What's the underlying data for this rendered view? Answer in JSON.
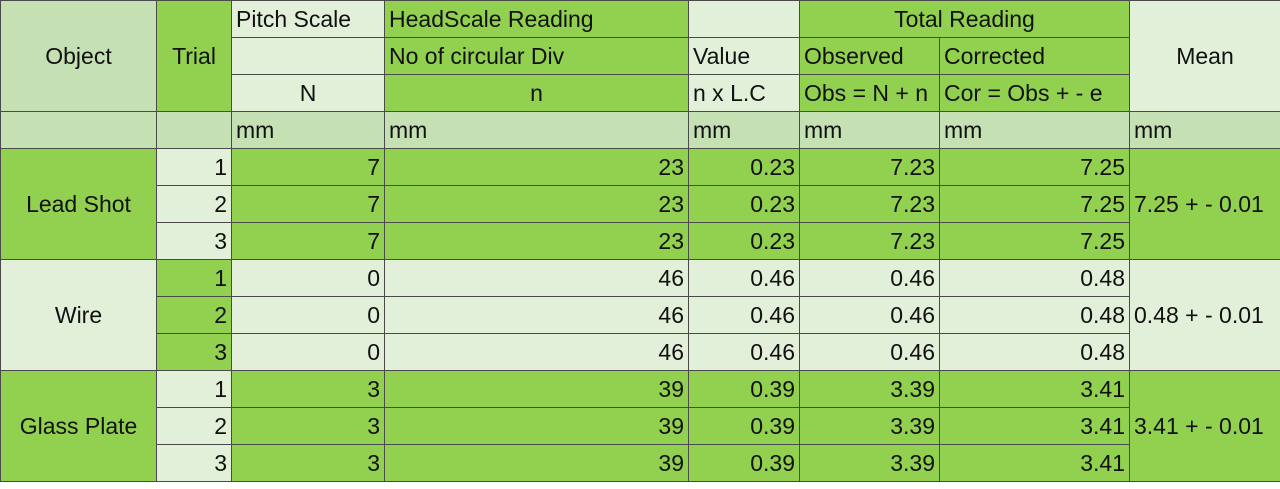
{
  "headers": {
    "object": "Object",
    "trial": "Trial",
    "pitch_scale": "Pitch Scale",
    "pitch_N": "N",
    "headscale_reading": "HeadScale Reading",
    "no_circular_div": "No of circular Div",
    "head_n": "n",
    "value": "Value",
    "value_formula": "n x L.C",
    "total_reading": "Total Reading",
    "observed": "Observed",
    "observed_formula": "Obs = N + n",
    "corrected": "Corrected",
    "corrected_formula": "Cor = Obs + - e",
    "mean": "Mean"
  },
  "units": [
    "mm",
    "mm",
    "mm",
    "mm",
    "mm",
    "mm"
  ],
  "objects": [
    {
      "name": "Lead Shot",
      "mean": "7.25 + - 0.01",
      "trials": [
        {
          "trial": "1",
          "N": "7",
          "n": "23",
          "value": "0.23",
          "observed": "7.23",
          "corrected": "7.25"
        },
        {
          "trial": "2",
          "N": "7",
          "n": "23",
          "value": "0.23",
          "observed": "7.23",
          "corrected": "7.25"
        },
        {
          "trial": "3",
          "N": "7",
          "n": "23",
          "value": "0.23",
          "observed": "7.23",
          "corrected": "7.25"
        }
      ]
    },
    {
      "name": "Wire",
      "mean": "0.48 + - 0.01",
      "trials": [
        {
          "trial": "1",
          "N": "0",
          "n": "46",
          "value": "0.46",
          "observed": "0.46",
          "corrected": "0.48"
        },
        {
          "trial": "2",
          "N": "0",
          "n": "46",
          "value": "0.46",
          "observed": "0.46",
          "corrected": "0.48"
        },
        {
          "trial": "3",
          "N": "0",
          "n": "46",
          "value": "0.46",
          "observed": "0.46",
          "corrected": "0.48"
        }
      ]
    },
    {
      "name": "Glass Plate",
      "mean": "3.41 + - 0.01",
      "trials": [
        {
          "trial": "1",
          "N": "3",
          "n": "39",
          "value": "0.39",
          "observed": "3.39",
          "corrected": "3.41"
        },
        {
          "trial": "2",
          "N": "3",
          "n": "39",
          "value": "0.39",
          "observed": "3.39",
          "corrected": "3.41"
        },
        {
          "trial": "3",
          "N": "3",
          "n": "39",
          "value": "0.39",
          "observed": "3.39",
          "corrected": "3.41"
        }
      ]
    }
  ]
}
